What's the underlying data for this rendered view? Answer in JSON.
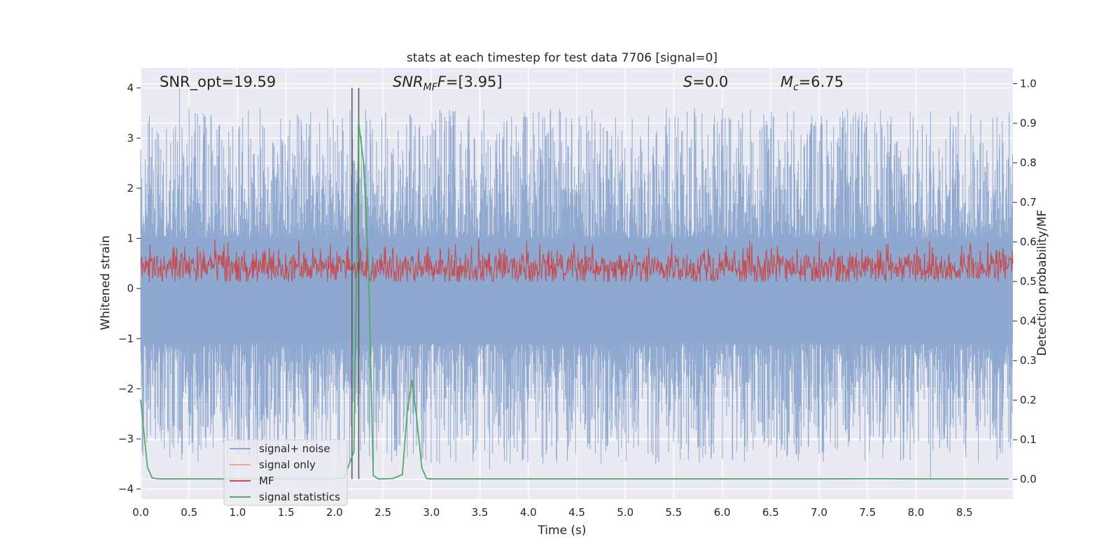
{
  "chart_data": {
    "type": "line",
    "title": "stats at each timestep for test data 7706 [signal=0]",
    "xlabel": "Time (s)",
    "ylabel": "Whitened strain",
    "ylabel_right": "Detection probability/MF",
    "xlim": [
      0.0,
      9.0
    ],
    "ylim": [
      -4.2,
      4.4
    ],
    "ylim_right": [
      -0.05,
      1.04
    ],
    "x_ticks": [
      "0.0",
      "0.5",
      "1.0",
      "1.5",
      "2.0",
      "2.5",
      "3.0",
      "3.5",
      "4.0",
      "4.5",
      "5.0",
      "5.5",
      "6.0",
      "6.5",
      "7.0",
      "7.5",
      "8.0",
      "8.5"
    ],
    "y_ticks": [
      "4",
      "3",
      "2",
      "1",
      "0",
      "−1",
      "−2",
      "−3",
      "−4"
    ],
    "y_right_ticks": [
      "1.0",
      "0.9",
      "0.8",
      "0.7",
      "0.6",
      "0.5",
      "0.4",
      "0.3",
      "0.2",
      "0.1",
      "0.0"
    ],
    "grid": true,
    "legend_position": "lower-left",
    "annotations": {
      "snr_opt": "SNR_opt=19.59",
      "snr_mf_base": "SNR",
      "snr_mf_sub": "MF",
      "snr_mf_value": "=[3.95]",
      "s_label": "S",
      "s_value": "=0.0",
      "mc_base": "M",
      "mc_sub": "c",
      "mc_value": "=6.75"
    },
    "vertical_lines": [
      2.18,
      2.25
    ],
    "series": [
      {
        "name": "signal+ noise",
        "color": "#8fa8cf",
        "style": "dense noise trace",
        "upper_envelope_typical": [
          1.6,
          2.8
        ],
        "lower_envelope_typical": [
          -1.6,
          -2.8
        ],
        "max": 4.0,
        "min": -3.8
      },
      {
        "name": "signal only",
        "color": "#e8a98f",
        "style": "not visible",
        "values": []
      },
      {
        "name": "MF",
        "color": "#c44e52",
        "style": "dense trace (right axis)",
        "range": [
          0.5,
          0.62
        ]
      },
      {
        "name": "signal statistics",
        "color": "#55a868",
        "x": [
          0.0,
          0.07,
          0.12,
          0.2,
          0.3,
          0.5,
          1.0,
          1.5,
          2.0,
          2.1,
          2.2,
          2.25,
          2.3,
          2.35,
          2.4,
          2.45,
          2.5,
          2.6,
          2.7,
          2.75,
          2.8,
          2.85,
          2.9,
          2.95,
          3.0,
          4.0,
          5.0,
          6.0,
          7.0,
          7.6,
          8.0,
          8.95
        ],
        "y": [
          0.2,
          0.03,
          0.003,
          0.001,
          0.001,
          0.001,
          0.001,
          0.001,
          0.001,
          0.005,
          0.07,
          0.9,
          0.8,
          0.55,
          0.01,
          0.001,
          0.001,
          0.002,
          0.012,
          0.17,
          0.25,
          0.15,
          0.03,
          0.002,
          0.001,
          0.001,
          0.001,
          0.001,
          0.001,
          0.0015,
          0.001,
          0.001
        ]
      }
    ]
  }
}
